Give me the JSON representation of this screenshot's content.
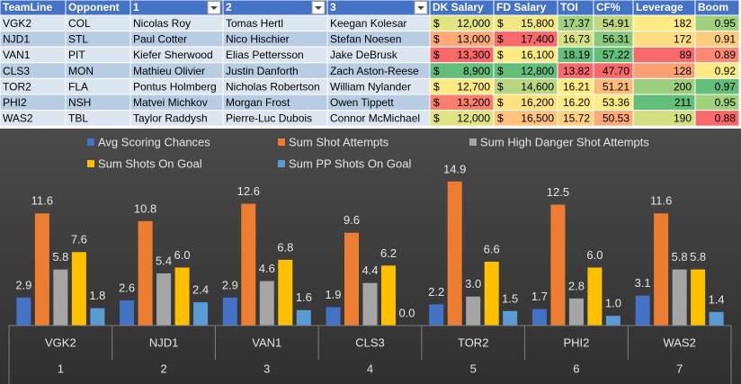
{
  "table": {
    "header": [
      "TeamLine",
      "Opponent",
      "1",
      "2",
      "3",
      "DK Salary",
      "FD Salary",
      "TOI",
      "CF%",
      "Leverage",
      "Boom"
    ],
    "currency_symbol": "$",
    "currency_columns": [
      5,
      6
    ],
    "rows": [
      [
        "VGK2",
        "COL",
        "Nicolas Roy",
        "Tomas Hertl",
        "Keegan Kolesar",
        "12,000",
        "15,800",
        "17.37",
        "54.91",
        "182",
        "0.95"
      ],
      [
        "NJD1",
        "STL",
        "Paul Cotter",
        "Nico Hischier",
        "Stefan Noesen",
        "13,000",
        "17,400",
        "16.73",
        "56.31",
        "172",
        "0.91"
      ],
      [
        "VAN1",
        "PIT",
        "Kiefer Sherwood",
        "Elias Pettersson",
        "Jake DeBrusk",
        "13,300",
        "16,100",
        "18.19",
        "57.22",
        "89",
        "0.89"
      ],
      [
        "CLS3",
        "MON",
        "Mathieu Olivier",
        "Justin Danforth",
        "Zach Aston-Reese",
        "8,900",
        "12,800",
        "13.82",
        "47.70",
        "128",
        "0.92"
      ],
      [
        "TOR2",
        "FLA",
        "Pontus Holmberg",
        "Nicholas Robertson",
        "William Nylander",
        "12,700",
        "14,600",
        "16.21",
        "51.21",
        "200",
        "0.97"
      ],
      [
        "PHI2",
        "NSH",
        "Matvei Michkov",
        "Morgan Frost",
        "Owen Tippett",
        "13,200",
        "16,200",
        "16.20",
        "53.36",
        "211",
        "0.95"
      ],
      [
        "WAS2",
        "TBL",
        "Taylor Raddysh",
        "Pierre-Luc Dubois",
        "Connor McMichael",
        "12,000",
        "16,500",
        "15.72",
        "50.53",
        "190",
        "0.88"
      ]
    ],
    "header_color": "#4472c4",
    "row_colors": [
      "#dce6f1",
      "#b8cce4"
    ],
    "color_scale_colors": [
      "#f8696b",
      "#ffeb84",
      "#63be7b"
    ],
    "higher_is_green": [
      null,
      null,
      null,
      null,
      null,
      false,
      false,
      true,
      true,
      true,
      true
    ]
  },
  "chart_data": {
    "type": "bar",
    "categories": [
      "VGK2",
      "NJD1",
      "VAN1",
      "CLS3",
      "TOR2",
      "PHI2",
      "WAS2"
    ],
    "category_numbers": [
      1,
      2,
      3,
      4,
      5,
      6,
      7
    ],
    "ylim": [
      0,
      16
    ],
    "series": [
      {
        "name": "Avg Scoring Chances",
        "color": "#4472c4",
        "values": [
          2.9,
          2.6,
          2.9,
          1.9,
          2.2,
          1.7,
          3.1
        ]
      },
      {
        "name": "Sum Shot Attempts",
        "color": "#ed7d31",
        "values": [
          11.6,
          10.8,
          12.6,
          9.6,
          14.9,
          12.5,
          11.6
        ]
      },
      {
        "name": "Sum High Danger Shot Attempts",
        "color": "#a5a5a5",
        "values": [
          5.8,
          5.4,
          4.6,
          4.4,
          3.0,
          2.8,
          5.8
        ],
        "value_labels": [
          "5.8",
          "5.4",
          "4.6",
          "4.4",
          "3.0",
          "2.8",
          "5.8"
        ]
      },
      {
        "name": "Sum Shots On Goal",
        "color": "#ffc000",
        "values": [
          7.6,
          6.0,
          6.8,
          6.2,
          6.6,
          6.0,
          5.8
        ],
        "value_labels": [
          "7.6",
          "6.0",
          "6.8",
          "6.2",
          "6.6",
          "6.0",
          "5.8"
        ]
      },
      {
        "name": "Sum PP Shots On Goal",
        "color": "#5b9bd5",
        "values": [
          1.8,
          2.4,
          1.6,
          0.0,
          1.5,
          1.0,
          1.4
        ],
        "value_labels": [
          "1.8",
          "2.4",
          "1.6",
          "0.0",
          "1.5",
          "1.0",
          "1.4"
        ]
      }
    ]
  }
}
